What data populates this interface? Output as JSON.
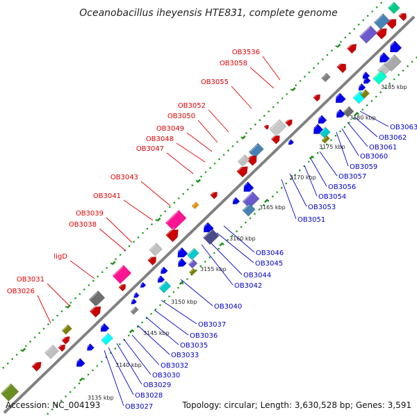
{
  "title": "Oceanobacillus iheyensis HTE831, complete genome",
  "footer": {
    "accession": "Accession: NC_004193",
    "stats": "Topology: circular; Length: 3,630,528 bp; Genes: 3,591"
  },
  "colors": {
    "forward_label": "#e00000",
    "reverse_label": "#0000cc",
    "backbone": "#808080",
    "dots": "#22a022"
  },
  "forward_labels": [
    "OB3536",
    "OB3058",
    "OB3055",
    "OB3052",
    "OB3050",
    "OB3049",
    "OB3048",
    "OB3047",
    "OB3043",
    "OB3041",
    "OB3039",
    "OB3038",
    "ligD",
    "OB3031",
    "OB3026"
  ],
  "reverse_labels": [
    "OB3063",
    "OB3062",
    "OB3061",
    "OB3060",
    "OB3059",
    "OB3057",
    "OB3056",
    "OB3054",
    "OB3053",
    "OB3051",
    "OB3046",
    "OB3045",
    "OB3044",
    "OB3042",
    "OB3040",
    "OB3037",
    "OB3036",
    "OB3035",
    "OB3033",
    "OB3032",
    "OB3030",
    "OB3029",
    "OB3028",
    "OB3027"
  ],
  "scale_labels": [
    "3185 kbp",
    "3180 kbp",
    "3175 kbp",
    "3170 kbp",
    "3165 kbp",
    "3160 kbp",
    "3155 kbp",
    "3150 kbp",
    "3145 kbp",
    "3140 kbp",
    "3135 kbp"
  ]
}
